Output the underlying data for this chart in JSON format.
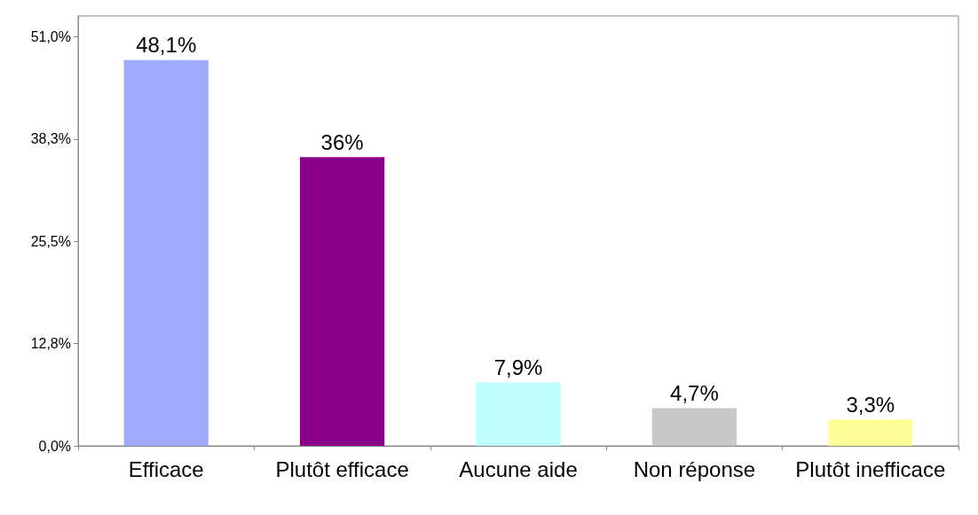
{
  "chart_data": {
    "type": "bar",
    "categories": [
      "Efficace",
      "Plutôt efficace",
      "Aucune aide",
      "Non réponse",
      "Plutôt inefficace"
    ],
    "values": [
      48.1,
      36,
      7.9,
      4.7,
      3.3
    ],
    "colors": [
      "#a0aaff",
      "#880088",
      "#c0ffff",
      "#c8c8c8",
      "#ffff99"
    ],
    "value_labels": [
      "48,1%",
      "36%",
      "7,9%",
      "4,7%",
      "3,3%"
    ],
    "ylim": [
      0,
      53.6
    ],
    "yticks": [
      {
        "value": 0,
        "label": "0,0%"
      },
      {
        "value": 12.75,
        "label": "12,8%"
      },
      {
        "value": 25.5,
        "label": "25,5%"
      },
      {
        "value": 38.25,
        "label": "38,3%"
      },
      {
        "value": 51,
        "label": "51,0%"
      }
    ],
    "grid": false
  }
}
